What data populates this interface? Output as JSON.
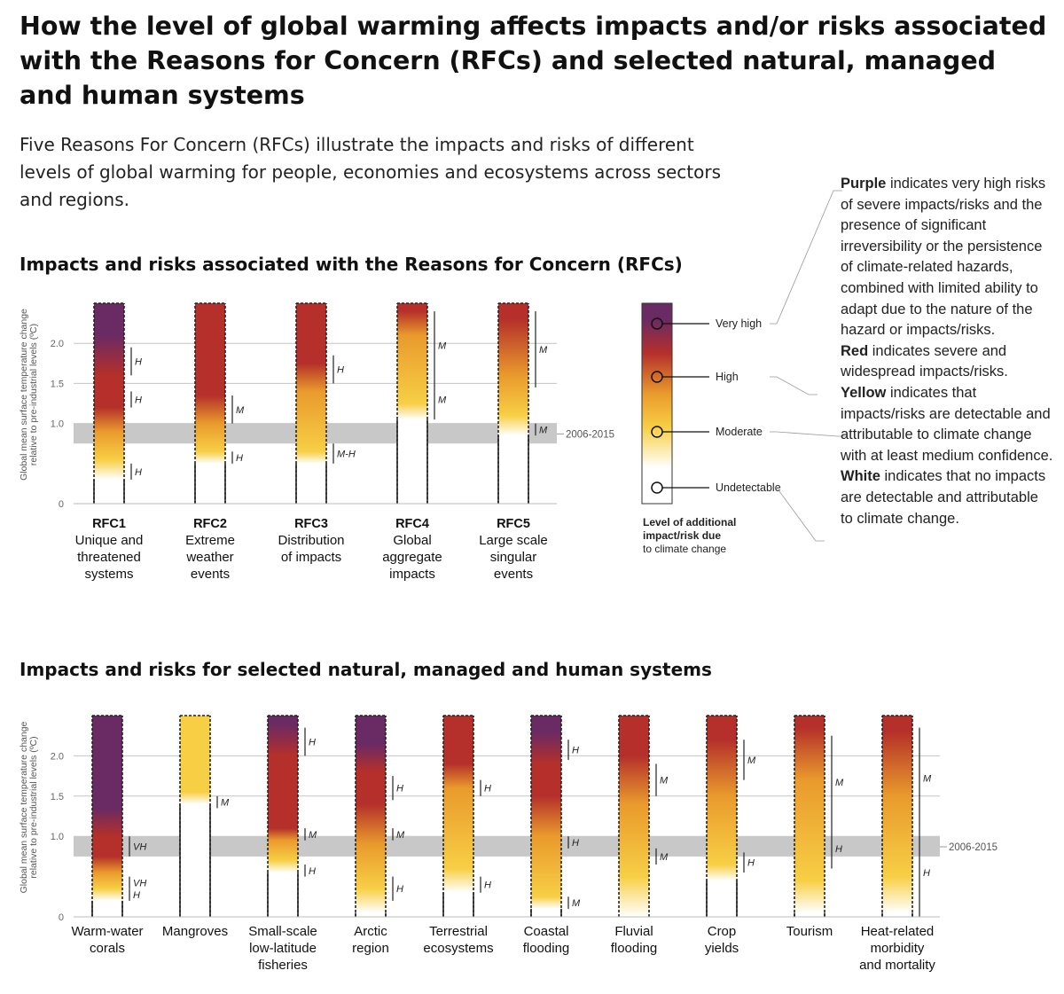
{
  "title": "How the level of global warming affects impacts and/or risks associated with the Reasons for Concern (RFCs) and selected natural, managed and human systems",
  "intro": "Five Reasons For Concern (RFCs) illustrate the impacts and risks of different levels of global warming for people, economies and ecosystems across sectors and regions.",
  "colors": {
    "white": "#ffffff",
    "yellow": "#f7cf45",
    "orange": "#e99a2c",
    "red": "#b5302a",
    "purple": "#6a2a64",
    "band": "#c8c8c8"
  },
  "risk_legend": {
    "levels": [
      "Very high",
      "High",
      "Moderate",
      "Undetectable"
    ],
    "caption": [
      "Level of additional",
      "impact/risk due",
      "to climate change"
    ],
    "band_label": "2006-2015"
  },
  "legend_notes": [
    {
      "term": "Purple",
      "text": " indicates very high risks of severe impacts/risks and the presence of significant irreversibility or the persistence of climate-related hazards, combined with limited ability to adapt due to the nature of the hazard or impacts/risks."
    },
    {
      "term": "Red",
      "text": " indicates severe and widespread impacts/risks."
    },
    {
      "term": "Yellow",
      "text": " indicates that impacts/risks are detectable and attributable to climate change with at least medium confidence."
    },
    {
      "term": "White",
      "text": " indicates that no impacts are detectable and attributable to climate change."
    }
  ],
  "chart_data": [
    {
      "type": "bar",
      "title": "Impacts and risks associated with the Reasons for Concern (RFCs)",
      "ylabel": [
        "Global mean surface temperature change",
        "relative to pre-industrial levels (ºC)"
      ],
      "yticks": [
        "0",
        "1.0",
        "1.5",
        "2.0"
      ],
      "ylim": [
        0,
        2.5
      ],
      "band": [
        0.75,
        1.0
      ],
      "band_label": "2006-2015",
      "categories": [
        {
          "code": "RFC1",
          "name": [
            "Unique and",
            "threatened",
            "systems"
          ],
          "stops": [
            [
              0.3,
              "white"
            ],
            [
              0.55,
              "yellow"
            ],
            [
              0.9,
              "orange"
            ],
            [
              1.2,
              "red"
            ],
            [
              1.6,
              "red"
            ],
            [
              2.1,
              "purple"
            ]
          ],
          "confidence": [
            {
              "from": 0.3,
              "to": 0.5,
              "label": "H"
            },
            {
              "from": 1.2,
              "to": 1.4,
              "label": "H"
            },
            {
              "from": 1.6,
              "to": 1.95,
              "label": "H"
            }
          ]
        },
        {
          "code": "RFC2",
          "name": [
            "Extreme",
            "weather",
            "events"
          ],
          "stops": [
            [
              0.5,
              "white"
            ],
            [
              0.65,
              "yellow"
            ],
            [
              1.0,
              "orange"
            ],
            [
              1.35,
              "red"
            ]
          ],
          "confidence": [
            {
              "from": 0.5,
              "to": 0.65,
              "label": "H"
            },
            {
              "from": 1.0,
              "to": 1.35,
              "label": "M"
            }
          ]
        },
        {
          "code": "RFC3",
          "name": [
            "Distribution",
            "of impacts"
          ],
          "stops": [
            [
              0.5,
              "white"
            ],
            [
              0.65,
              "yellow"
            ],
            [
              1.4,
              "orange"
            ],
            [
              1.75,
              "red"
            ]
          ],
          "confidence": [
            {
              "from": 0.5,
              "to": 0.75,
              "label": "M-H"
            },
            {
              "from": 1.5,
              "to": 1.85,
              "label": "H"
            }
          ]
        },
        {
          "code": "RFC4",
          "name": [
            "Global",
            "aggregate",
            "impacts"
          ],
          "stops": [
            [
              1.05,
              "white"
            ],
            [
              1.25,
              "yellow"
            ],
            [
              2.1,
              "orange"
            ],
            [
              2.4,
              "red"
            ]
          ],
          "confidence": [
            {
              "from": 1.05,
              "to": 1.55,
              "label": "M"
            },
            {
              "from": 1.55,
              "to": 2.4,
              "label": "M"
            }
          ]
        },
        {
          "code": "RFC5",
          "name": [
            "Large scale",
            "singular",
            "events"
          ],
          "stops": [
            [
              0.85,
              "white"
            ],
            [
              1.1,
              "yellow"
            ],
            [
              1.6,
              "orange"
            ],
            [
              2.3,
              "red"
            ]
          ],
          "confidence": [
            {
              "from": 0.85,
              "to": 1.0,
              "label": "M"
            },
            {
              "from": 1.45,
              "to": 2.4,
              "label": "M"
            }
          ]
        }
      ]
    },
    {
      "type": "bar",
      "title": "Impacts and risks for selected natural, managed and human systems",
      "ylabel": [
        "Global mean surface temperature change",
        "relative to pre-industrial levels (ºC)"
      ],
      "yticks": [
        "0",
        "1.0",
        "1.5",
        "2.0"
      ],
      "ylim": [
        0,
        2.5
      ],
      "band": [
        0.75,
        1.0
      ],
      "band_label": "2006-2015",
      "categories": [
        {
          "name": [
            "Warm-water",
            "corals"
          ],
          "stops": [
            [
              0.2,
              "white"
            ],
            [
              0.35,
              "yellow"
            ],
            [
              0.55,
              "orange"
            ],
            [
              0.75,
              "red"
            ],
            [
              1.0,
              "red"
            ],
            [
              1.35,
              "purple"
            ]
          ],
          "confidence": [
            {
              "from": 0.2,
              "to": 0.35,
              "label": "H"
            },
            {
              "from": 0.35,
              "to": 0.5,
              "label": "VH"
            },
            {
              "from": 0.75,
              "to": 1.0,
              "label": "VH"
            }
          ]
        },
        {
          "name": [
            "Mangroves"
          ],
          "stops": [
            [
              1.4,
              "white"
            ],
            [
              1.55,
              "yellow"
            ]
          ],
          "confidence": [
            {
              "from": 1.35,
              "to": 1.5,
              "label": "M"
            }
          ]
        },
        {
          "name": [
            "Small-scale",
            "low-latitude",
            "fisheries"
          ],
          "stops": [
            [
              0.55,
              "white"
            ],
            [
              0.7,
              "yellow"
            ],
            [
              0.95,
              "orange"
            ],
            [
              1.1,
              "red"
            ],
            [
              2.0,
              "red"
            ],
            [
              2.4,
              "purple"
            ]
          ],
          "confidence": [
            {
              "from": 0.5,
              "to": 0.65,
              "label": "H"
            },
            {
              "from": 0.95,
              "to": 1.1,
              "label": "M"
            },
            {
              "from": 2.0,
              "to": 2.35,
              "label": "H"
            }
          ]
        },
        {
          "name": [
            "Arctic",
            "region"
          ],
          "stops": [
            [
              0.05,
              "white"
            ],
            [
              0.35,
              "yellow"
            ],
            [
              0.9,
              "orange"
            ],
            [
              1.4,
              "red"
            ],
            [
              1.8,
              "red"
            ],
            [
              2.15,
              "purple"
            ]
          ],
          "confidence": [
            {
              "from": 0.2,
              "to": 0.5,
              "label": "H"
            },
            {
              "from": 0.95,
              "to": 1.1,
              "label": "M"
            },
            {
              "from": 1.45,
              "to": 1.75,
              "label": "H"
            }
          ]
        },
        {
          "name": [
            "Terrestrial",
            "ecosystems"
          ],
          "stops": [
            [
              0.3,
              "white"
            ],
            [
              0.6,
              "yellow"
            ],
            [
              1.6,
              "orange"
            ],
            [
              1.9,
              "red"
            ]
          ],
          "confidence": [
            {
              "from": 0.3,
              "to": 0.5,
              "label": "H"
            },
            {
              "from": 1.5,
              "to": 1.7,
              "label": "H"
            }
          ]
        },
        {
          "name": [
            "Coastal",
            "flooding"
          ],
          "stops": [
            [
              0.1,
              "white"
            ],
            [
              0.25,
              "yellow"
            ],
            [
              1.0,
              "orange"
            ],
            [
              1.5,
              "red"
            ],
            [
              1.9,
              "red"
            ],
            [
              2.3,
              "purple"
            ]
          ],
          "confidence": [
            {
              "from": 0.1,
              "to": 0.25,
              "label": "M"
            },
            {
              "from": 0.85,
              "to": 1.0,
              "label": "H"
            },
            {
              "from": 1.95,
              "to": 2.2,
              "label": "H"
            }
          ]
        },
        {
          "name": [
            "Fluvial",
            "flooding"
          ],
          "stops": [
            [
              0.0,
              "white"
            ],
            [
              0.5,
              "yellow"
            ],
            [
              1.4,
              "orange"
            ],
            [
              2.0,
              "red"
            ]
          ],
          "confidence": [
            {
              "from": 0.65,
              "to": 0.85,
              "label": "M"
            },
            {
              "from": 1.5,
              "to": 1.9,
              "label": "M"
            }
          ]
        },
        {
          "name": [
            "Crop",
            "yields"
          ],
          "stops": [
            [
              0.45,
              "white"
            ],
            [
              0.65,
              "yellow"
            ],
            [
              1.5,
              "orange"
            ],
            [
              2.2,
              "red"
            ]
          ],
          "confidence": [
            {
              "from": 0.55,
              "to": 0.8,
              "label": "H"
            },
            {
              "from": 1.7,
              "to": 2.2,
              "label": "M"
            }
          ]
        },
        {
          "name": [
            "Tourism"
          ],
          "stops": [
            [
              0.05,
              "white"
            ],
            [
              0.45,
              "yellow"
            ],
            [
              1.7,
              "orange"
            ],
            [
              2.35,
              "red"
            ]
          ],
          "confidence": [
            {
              "from": 0.6,
              "to": 1.1,
              "label": "H"
            },
            {
              "from": 1.1,
              "to": 2.25,
              "label": "M"
            }
          ]
        },
        {
          "name": [
            "Heat-related",
            "morbidity",
            "and mortality"
          ],
          "stops": [
            [
              0.05,
              "white"
            ],
            [
              0.5,
              "yellow"
            ],
            [
              1.5,
              "orange"
            ],
            [
              2.3,
              "red"
            ]
          ],
          "confidence": [
            {
              "from": 0.0,
              "to": 1.1,
              "label": "H"
            },
            {
              "from": 1.1,
              "to": 2.35,
              "label": "M"
            }
          ]
        }
      ]
    }
  ]
}
